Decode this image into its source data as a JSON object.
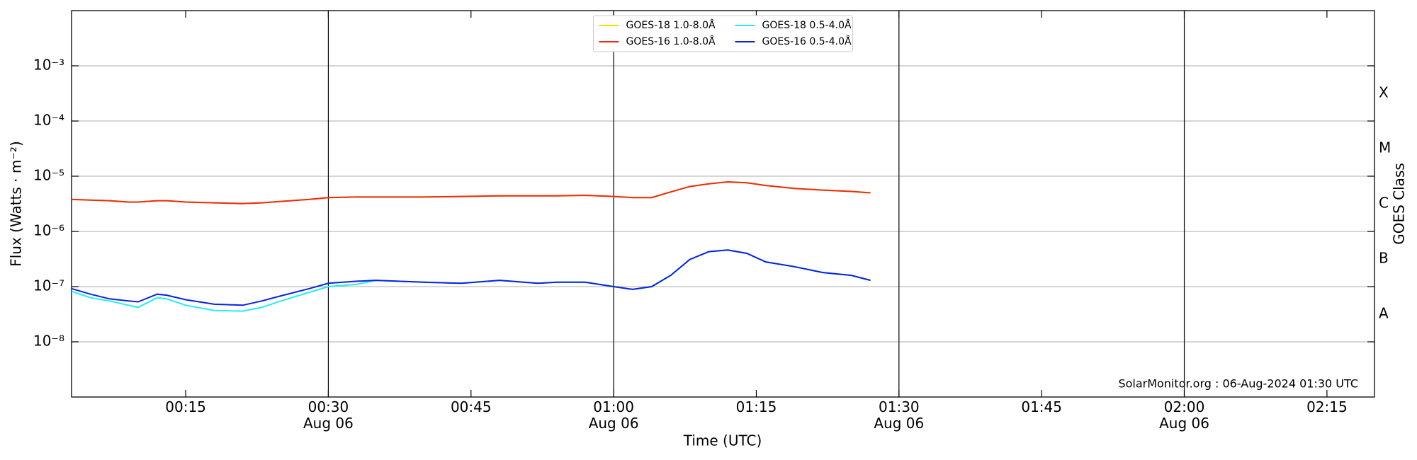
{
  "chart_data": {
    "type": "line",
    "xlabel": "Time (UTC)",
    "ylabel": "Flux (Watts · m⁻²)",
    "y2label": "GOES Class",
    "annotation": "SolarMonitor.org : 06-Aug-2024 01:30 UTC",
    "yscale": "log",
    "grid": true,
    "legend": "upper center",
    "xlim": [
      "00:03",
      "02:20"
    ],
    "xticks": [
      "00:15",
      {
        "value": "00:30",
        "label": "00:30\nAug 06"
      },
      "00:45",
      {
        "value": "01:00",
        "label": "01:00\nAug 06"
      },
      "01:15",
      {
        "value": "01:30",
        "label": "01:30\nAug 06"
      },
      "01:45",
      {
        "value": "02:00",
        "label": "02:00\nAug 06"
      },
      "02:15"
    ],
    "vlines": [
      "00:30",
      "01:00",
      "01:30",
      "02:00"
    ],
    "ylim": [
      1e-09,
      0.01
    ],
    "yticks": [
      {
        "value": 1e-08,
        "label": "10⁻⁸"
      },
      {
        "value": 1e-07,
        "label": "10⁻⁷"
      },
      {
        "value": 1e-06,
        "label": "10⁻⁶"
      },
      {
        "value": 1e-05,
        "label": "10⁻⁵"
      },
      {
        "value": 0.0001,
        "label": "10⁻⁴"
      },
      {
        "value": 0.001,
        "label": "10⁻³"
      }
    ],
    "y2lim": [
      1e-09,
      0.01
    ],
    "y2ticks": [
      {
        "value": 3.16e-08,
        "label": "A"
      },
      {
        "value": 3.16e-07,
        "label": "B"
      },
      {
        "value": 3.16e-06,
        "label": "C"
      },
      {
        "value": 3.16e-05,
        "label": "M"
      },
      {
        "value": 0.000316,
        "label": "X"
      }
    ],
    "x": [
      "00:03",
      "00:05",
      "00:07",
      "00:09",
      "00:10",
      "00:12",
      "00:13",
      "00:15",
      "00:18",
      "00:21",
      "00:23",
      "00:25",
      "00:28",
      "00:30",
      "00:33",
      "00:35",
      "00:40",
      "00:44",
      "00:48",
      "00:52",
      "00:54",
      "00:57",
      "01:00",
      "01:02",
      "01:04",
      "01:06",
      "01:08",
      "01:10",
      "01:12",
      "01:14",
      "01:16",
      "01:19",
      "01:22",
      "01:25",
      "01:27"
    ],
    "series": [
      {
        "name": "GOES-18 1.0-8.0Å",
        "color": "#ffd700",
        "values": [
          3.8e-06,
          3.7e-06,
          3.6e-06,
          3.4e-06,
          3.4e-06,
          3.6e-06,
          3.6e-06,
          3.4e-06,
          3.3e-06,
          3.2e-06,
          3.3e-06,
          3.5e-06,
          3.8e-06,
          4.1e-06,
          4.2e-06,
          4.2e-06,
          4.2e-06,
          4.3e-06,
          4.4e-06,
          4.4e-06,
          4.4e-06,
          4.5e-06,
          4.3e-06,
          4.1e-06,
          4.1e-06,
          5.2e-06,
          6.5e-06,
          7.3e-06,
          7.9e-06,
          7.6e-06,
          6.8e-06,
          6e-06,
          5.6e-06,
          5.3e-06,
          5e-06
        ]
      },
      {
        "name": "GOES-16 1.0-8.0Å",
        "color": "#ee2a0c",
        "values": [
          3.8e-06,
          3.7e-06,
          3.6e-06,
          3.4e-06,
          3.4e-06,
          3.6e-06,
          3.6e-06,
          3.4e-06,
          3.3e-06,
          3.2e-06,
          3.3e-06,
          3.5e-06,
          3.8e-06,
          4.1e-06,
          4.2e-06,
          4.2e-06,
          4.2e-06,
          4.3e-06,
          4.4e-06,
          4.4e-06,
          4.4e-06,
          4.5e-06,
          4.3e-06,
          4.1e-06,
          4.1e-06,
          5.2e-06,
          6.5e-06,
          7.3e-06,
          7.9e-06,
          7.6e-06,
          6.8e-06,
          6e-06,
          5.6e-06,
          5.3e-06,
          5e-06
        ]
      },
      {
        "name": "GOES-18 0.5-4.0Å",
        "color": "#22eef0",
        "values": [
          8.2e-08,
          6.3e-08,
          5.5e-08,
          4.6e-08,
          4.2e-08,
          6.3e-08,
          6e-08,
          4.6e-08,
          3.7e-08,
          3.6e-08,
          4.2e-08,
          5.5e-08,
          7.9e-08,
          1e-07,
          1.1e-07,
          1.3e-07,
          1.2e-07,
          1.15e-07,
          1.3e-07,
          1.15e-07,
          1.2e-07,
          1.2e-07,
          1e-07,
          8.9e-08,
          1e-07,
          1.6e-07,
          3.1e-07,
          4.3e-07,
          4.6e-07,
          4e-07,
          2.8e-07,
          2.3e-07,
          1.8e-07,
          1.6e-07,
          1.3e-07
        ]
      },
      {
        "name": "GOES-16 0.5-4.0Å",
        "color": "#0a22dd",
        "values": [
          9.2e-08,
          7.3e-08,
          6e-08,
          5.5e-08,
          5.3e-08,
          7.3e-08,
          7e-08,
          5.8e-08,
          4.8e-08,
          4.6e-08,
          5.5e-08,
          6.8e-08,
          9.2e-08,
          1.15e-07,
          1.25e-07,
          1.3e-07,
          1.2e-07,
          1.15e-07,
          1.3e-07,
          1.15e-07,
          1.2e-07,
          1.2e-07,
          1e-07,
          8.9e-08,
          1e-07,
          1.6e-07,
          3.1e-07,
          4.3e-07,
          4.6e-07,
          4e-07,
          2.8e-07,
          2.3e-07,
          1.8e-07,
          1.6e-07,
          1.3e-07
        ]
      }
    ]
  }
}
